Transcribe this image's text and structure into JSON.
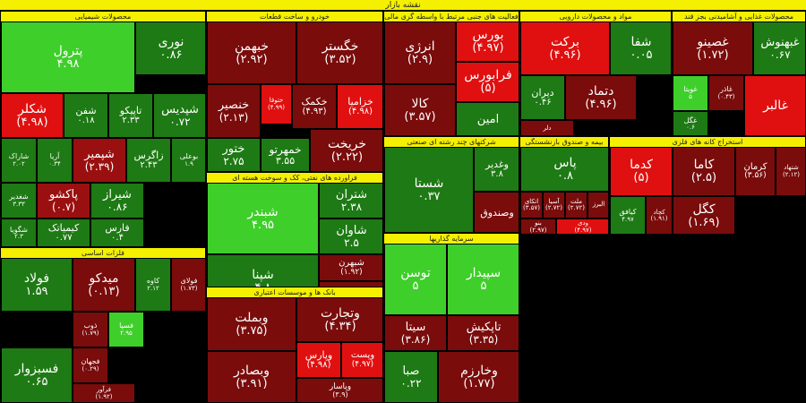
{
  "title": "نقشه بازار",
  "colors": {
    "strong_up": "#2ea11a",
    "light_up": "#3fcf2a",
    "bright_up": "#6be14a",
    "up": "#1e7a14",
    "strong_down": "#e01010",
    "down": "#9a1010",
    "dark_down": "#7a0c0c"
  },
  "sectors": [
    {
      "name": "محصولات شیمیایی",
      "tiles": [
        {
          "s": "پترول",
          "c": "۴.۹۸",
          "k": "light_up"
        },
        {
          "s": "نوری",
          "c": "۰.۸۶",
          "k": "up"
        },
        {
          "s": "شکلر",
          "c": "(۴.۹۸)",
          "k": "strong_down"
        },
        {
          "s": "شفن",
          "c": "۰.۱۸",
          "k": "up"
        },
        {
          "s": "تاپیکو",
          "c": "۲.۳۳",
          "k": "up"
        },
        {
          "s": "شپدیس",
          "c": "۰.۷۲",
          "k": "up"
        },
        {
          "s": "شاراک",
          "c": "۲.۰۲",
          "k": "up"
        },
        {
          "s": "آریا",
          "c": "۰.۳۴",
          "k": "up"
        },
        {
          "s": "شپمیر",
          "c": "(۲.۳۹)",
          "k": "down"
        },
        {
          "s": "زاگرس",
          "c": "۲.۴۳",
          "k": "up"
        },
        {
          "s": "بوعلی",
          "c": "۱.۹",
          "k": "up"
        },
        {
          "s": "شغدیر",
          "c": "۳.۳۳",
          "k": "up"
        },
        {
          "s": "پاکشو",
          "c": "(۰.۷)",
          "k": "down"
        },
        {
          "s": "شیراز",
          "c": "۰.۸۶",
          "k": "up"
        },
        {
          "s": "کیمیاتک",
          "c": "۰.۷۷",
          "k": "up"
        },
        {
          "s": "شگویا",
          "c": "۲.۳",
          "k": "up"
        },
        {
          "s": "فارس",
          "c": "۰.۴",
          "k": "up"
        }
      ]
    },
    {
      "name": "خودرو و ساخت قطعات",
      "tiles": [
        {
          "s": "خبهمن",
          "c": "(۲.۹۲)",
          "k": "dark_down"
        },
        {
          "s": "خگستر",
          "c": "(۳.۵۲)",
          "k": "dark_down"
        },
        {
          "s": "خنصیر",
          "c": "(۲.۱۳)",
          "k": "dark_down"
        },
        {
          "s": "ختوقا",
          "c": "(۴.۹۹)",
          "k": "strong_down"
        },
        {
          "s": "خکمک",
          "c": "(۴.۹۳)",
          "k": "dark_down"
        },
        {
          "s": "خزامیا",
          "c": "(۴.۹۸)",
          "k": "strong_down"
        },
        {
          "s": "ختور",
          "c": "۲.۷۵",
          "k": "up"
        },
        {
          "s": "خمهرتو",
          "c": "۳.۵۵",
          "k": "up"
        },
        {
          "s": "خریخت",
          "c": "(۲.۲۲)",
          "k": "dark_down"
        }
      ]
    },
    {
      "name": "فعالیت های جنبی مرتبط با واسطه گری مالی",
      "tiles": [
        {
          "s": "انرژی",
          "c": "(۲.۹)",
          "k": "dark_down"
        },
        {
          "s": "بورس",
          "c": "(۴.۹۷)",
          "k": "strong_down"
        },
        {
          "s": "فرابورس",
          "c": "(۵)",
          "k": "strong_down"
        },
        {
          "s": "کالا",
          "c": "(۳.۵۷)",
          "k": "dark_down"
        },
        {
          "s": "امین",
          "c": "",
          "k": "up"
        }
      ]
    },
    {
      "name": "مواد و محصولات دارویی",
      "tiles": [
        {
          "s": "برکت",
          "c": "(۴.۹۶)",
          "k": "strong_down"
        },
        {
          "s": "شفا",
          "c": "۰.۰۵",
          "k": "up"
        },
        {
          "s": "دیران",
          "c": "۰.۴۶",
          "k": "up"
        },
        {
          "s": "دتماد",
          "c": "(۴.۹۶)",
          "k": "dark_down"
        },
        {
          "s": "دلر",
          "c": "",
          "k": "dark_down"
        }
      ]
    },
    {
      "name": "محصولات غذایی و آشامیدنی بجز قند",
      "tiles": [
        {
          "s": "غصینو",
          "c": "(۱.۷۲)",
          "k": "dark_down"
        },
        {
          "s": "غبهنوش",
          "c": "۰.۶۷",
          "k": "up"
        },
        {
          "s": "غویتا",
          "c": "۵",
          "k": "light_up"
        },
        {
          "s": "غاذر",
          "c": "(۰.۴۳)",
          "k": "dark_down"
        },
        {
          "s": "غگل",
          "c": "۰.۶",
          "k": "up"
        },
        {
          "s": "غالبر",
          "c": "",
          "k": "strong_down"
        }
      ]
    },
    {
      "name": "فراورده های نفتی، کک و سوخت هسته ای",
      "tiles": [
        {
          "s": "شبندر",
          "c": "۴.۹۵",
          "k": "light_up"
        },
        {
          "s": "شتران",
          "c": "۲.۳۸",
          "k": "up"
        },
        {
          "s": "شاوان",
          "c": "۲.۵",
          "k": "up"
        },
        {
          "s": "شپنا",
          "c": "۴.۸",
          "k": "up"
        },
        {
          "s": "شبهرن",
          "c": "(۱.۹۲)",
          "k": "dark_down"
        },
        {
          "s": "شپاس",
          "c": "(۱.۹۲)",
          "k": "dark_down"
        },
        {
          "s": "شسپا",
          "c": "",
          "k": "dark_down"
        }
      ]
    },
    {
      "name": "شرکتهای چند رشته ای صنعتی",
      "tiles": [
        {
          "s": "شستا",
          "c": "۰.۳۷",
          "k": "up"
        },
        {
          "s": "وغدیر",
          "c": "۳.۸",
          "k": "up"
        },
        {
          "s": "وپانک",
          "c": "(۴.۹۱)",
          "k": "strong_down"
        },
        {
          "s": "وصندوق",
          "c": "",
          "k": "dark_down"
        }
      ]
    },
    {
      "name": "بیمه و صندوق بازنشستگی",
      "tiles": [
        {
          "s": "پاس",
          "c": "۰.۸",
          "k": "up"
        },
        {
          "s": "اتکای",
          "c": "(۳.۵۷)",
          "k": "dark_down"
        },
        {
          "s": "آسیا",
          "c": "(۲.۷۲)",
          "k": "dark_down"
        },
        {
          "s": "ملت",
          "c": "(۲.۷۲)",
          "k": "dark_down"
        },
        {
          "s": "البرز",
          "c": "",
          "k": "dark_down"
        },
        {
          "s": "بنو",
          "c": "(۲.۹۷)",
          "k": "dark_down"
        },
        {
          "s": "ودی",
          "c": "(۴.۹۷)",
          "k": "strong_down"
        }
      ]
    },
    {
      "name": "استخراج کانه های فلزی",
      "tiles": [
        {
          "s": "کدما",
          "c": "(۵)",
          "k": "strong_down"
        },
        {
          "s": "کاما",
          "c": "(۲.۵)",
          "k": "dark_down"
        },
        {
          "s": "کرمان",
          "c": "(۳.۵۶)",
          "k": "dark_down"
        },
        {
          "s": "شتهاد",
          "c": "(۲.۱۲)",
          "k": "dark_down"
        },
        {
          "s": "کگل",
          "c": "(۱.۶۹)",
          "k": "dark_down"
        },
        {
          "s": "کیافق",
          "c": "۴.۹۷",
          "k": "up"
        },
        {
          "s": "کچاد",
          "c": "(۱.۹۱)",
          "k": "dark_down"
        }
      ]
    },
    {
      "name": "فلزات اساسی",
      "tiles": [
        {
          "s": "فولاد",
          "c": "۱.۵۹",
          "k": "up"
        },
        {
          "s": "میدکو",
          "c": "(۰.۱۳)",
          "k": "dark_down"
        },
        {
          "s": "کاوه",
          "c": "۲.۱۲",
          "k": "up"
        },
        {
          "s": "فولای",
          "c": "(۱.۷۳)",
          "k": "dark_down"
        },
        {
          "s": "ذوب",
          "c": "(۱.۷۹)",
          "k": "dark_down"
        },
        {
          "s": "فسپا",
          "c": "۲.۹۵",
          "k": "light_up"
        },
        {
          "s": "فجهان",
          "c": "(۰.۲۹)",
          "k": "dark_down"
        },
        {
          "s": "فسبزوار",
          "c": "۰.۶۵",
          "k": "up"
        },
        {
          "s": "فرآور",
          "c": "(۱.۹۲)",
          "k": "dark_down"
        }
      ]
    },
    {
      "name": "بانک ها و موسسات اعتباری",
      "tiles": [
        {
          "s": "وبملت",
          "c": "(۳.۷۵)",
          "k": "dark_down"
        },
        {
          "s": "وتجارت",
          "c": "(۴.۳۴)",
          "k": "dark_down"
        },
        {
          "s": "وپارس",
          "c": "(۴.۹۸)",
          "k": "strong_down"
        },
        {
          "s": "وپست",
          "c": "(۴.۹۷)",
          "k": "strong_down"
        },
        {
          "s": "وبصادر",
          "c": "(۳.۹۱)",
          "k": "dark_down"
        },
        {
          "s": "وپاسار",
          "c": "(۳.۹)",
          "k": "dark_down"
        }
      ]
    },
    {
      "name": "سرمایه گذاریها",
      "tiles": [
        {
          "s": "توسن",
          "c": "۵",
          "k": "light_up"
        },
        {
          "s": "سپیدار",
          "c": "۵",
          "k": "light_up"
        },
        {
          "s": "تاپکیش",
          "c": "(۳.۳۵)",
          "k": "dark_down"
        },
        {
          "s": "سیتا",
          "c": "(۳.۸۶)",
          "k": "dark_down"
        },
        {
          "s": "صبا",
          "c": "۰.۲۲",
          "k": "up"
        },
        {
          "s": "وخارزم",
          "c": "(۱.۷۷)",
          "k": "dark_down"
        }
      ]
    }
  ]
}
